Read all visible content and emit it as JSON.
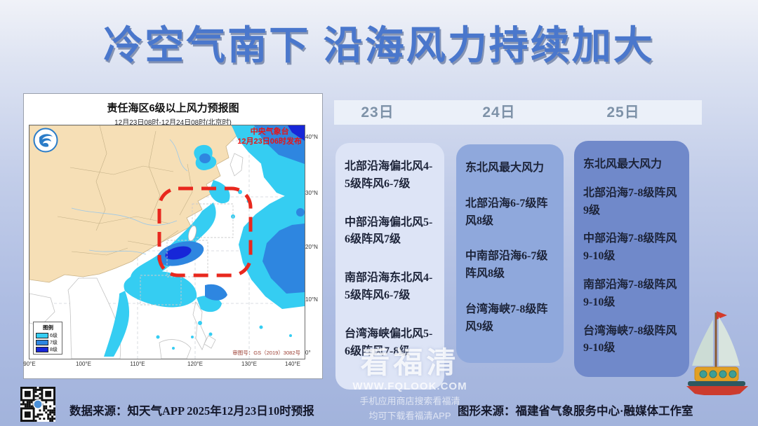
{
  "title": "冷空气南下 沿海风力持续加大",
  "map_panel": {
    "title": "责任海区6级以上风力预报图",
    "subtitle": "12月23日08时-12月24日08时(北京时)",
    "issuer": {
      "line1": "中央气象台",
      "line2": "12月23日06时发布"
    },
    "approval": "审图号：GS（2019）3082号",
    "legend": {
      "title": "图例",
      "items": [
        {
          "label": "6级",
          "color": "#35cdf2"
        },
        {
          "label": "7级",
          "color": "#2e86e0"
        },
        {
          "label": "8级",
          "color": "#1726d8"
        }
      ]
    },
    "lat_ticks": [
      "40°N",
      "30°N",
      "20°N",
      "10°N",
      "0°"
    ],
    "lon_ticks": [
      "90°E",
      "100°E",
      "110°E",
      "120°E",
      "130°E",
      "140°E"
    ]
  },
  "forecast": {
    "dates": [
      "23日",
      "24日",
      "25日"
    ],
    "cards": [
      {
        "bg": "#dde4f6",
        "items": [
          "北部沿海偏北风4-5级阵风6-7级",
          "中部沿海偏北风5-6级阵风7级",
          "南部沿海东北风4-5级阵风6-7级",
          "台湾海峡偏北风5-6级阵风7-8级"
        ]
      },
      {
        "bg": "#8fa8dc",
        "items": [
          "东北风最大风力",
          "北部沿海6-7级阵风8级",
          "中南部沿海6-7级阵风8级",
          "台湾海峡7-8级阵风9级"
        ]
      },
      {
        "bg": "#7089ca",
        "items": [
          "东北风最大风力",
          "北部沿海7-8级阵风9级",
          "中部沿海7-8级阵风9-10级",
          "南部沿海7-8级阵风9-10级",
          "台湾海峡7-8级阵风9-10级"
        ]
      }
    ]
  },
  "footer": {
    "data_source": "数据来源：知天气APP 2025年12月23日10时预报",
    "graphic_source": "图形来源：福建省气象服务中心·融媒体工作室"
  },
  "watermark": {
    "brand": "看福清",
    "url": "WWW.FQLOOK.COM",
    "line1": "手机应用商店搜索看福清",
    "line2": "均可下载看福清APP"
  },
  "colors": {
    "title_blue": "#4a77cc",
    "wind_level6": "#35cdf2",
    "wind_level7": "#2e86e0",
    "wind_level8": "#1726d8",
    "alert_red": "#e8281e",
    "land_tan": "#f6dfb6"
  }
}
